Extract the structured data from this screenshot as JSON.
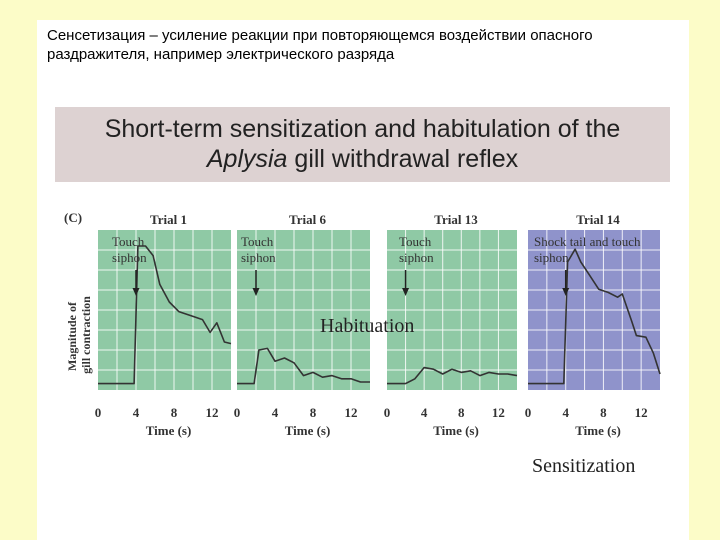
{
  "slide": {
    "caption": "Сенсетизация – усиление реакции при повторяющемся воздействии опасного раздражителя, например электрического разряда",
    "title_line1": "Short-term sensitization and habitulation of the",
    "title_line2_italic": "Aplysia",
    "title_line2_rest": " gill withdrawal reflex"
  },
  "colors": {
    "habituation_panel": "#8fc9a5",
    "sensitization_panel": "#8f93cb",
    "grid": "#ffffff",
    "trace": "#333333",
    "background": "#fcfcc8"
  },
  "figure": {
    "panel_label": "(C)",
    "y_label": [
      "Magnitude of",
      "gill contraction"
    ],
    "annotation_habituation": "Habituation",
    "annotation_sensitization": "Sensitization"
  },
  "chart_data": {
    "type": "line",
    "ylabel": "Magnitude of gill contraction",
    "xlabel": "Time (s)",
    "xlim": [
      0,
      14
    ],
    "ylim": [
      0,
      1
    ],
    "grid": true,
    "panels": [
      {
        "title": "Trial 1",
        "stimulus": "Touch siphon",
        "stimulus_time": 4,
        "xticks": [
          0,
          4,
          8,
          12
        ],
        "series": [
          {
            "x": [
              0,
              3.8,
              4.2,
              5,
              5.8,
              6.5,
              7.5,
              8.5,
              10,
              11,
              11.8,
              12.5,
              13.3,
              14
            ],
            "y": [
              0.04,
              0.04,
              0.9,
              0.9,
              0.84,
              0.66,
              0.55,
              0.49,
              0.46,
              0.44,
              0.36,
              0.42,
              0.3,
              0.29
            ]
          }
        ]
      },
      {
        "title": "Trial 6",
        "stimulus": "Touch siphon",
        "stimulus_time": 2,
        "xticks": [
          0,
          4,
          8,
          12
        ],
        "series": [
          {
            "x": [
              0,
              1.8,
              2.3,
              3.2,
              4,
              5,
              6,
              7,
              8,
              9,
              10,
              11,
              12,
              13,
              14
            ],
            "y": [
              0.04,
              0.04,
              0.25,
              0.26,
              0.18,
              0.2,
              0.17,
              0.09,
              0.11,
              0.08,
              0.09,
              0.07,
              0.07,
              0.05,
              0.05
            ]
          }
        ]
      },
      {
        "title": "Trial 13",
        "stimulus": "Touch siphon",
        "stimulus_time": 2,
        "xticks": [
          0,
          4,
          8,
          12
        ],
        "series": [
          {
            "x": [
              0,
              2,
              3,
              4,
              5,
              6,
              7,
              8,
              9,
              10,
              11,
              12,
              13,
              14
            ],
            "y": [
              0.04,
              0.04,
              0.07,
              0.14,
              0.13,
              0.1,
              0.13,
              0.11,
              0.12,
              0.09,
              0.11,
              0.1,
              0.1,
              0.09
            ]
          }
        ]
      },
      {
        "title": "Trial 14",
        "stimulus": "Shock tail and touch siphon",
        "stimulus_time": 4,
        "xticks": [
          0,
          4,
          8,
          12
        ],
        "series": [
          {
            "x": [
              0,
              3.8,
              4.2,
              5,
              5.6,
              6.5,
              7.5,
              8.5,
              9.5,
              10,
              11,
              11.5,
              12.5,
              13.3,
              14
            ],
            "y": [
              0.04,
              0.04,
              0.8,
              0.88,
              0.8,
              0.72,
              0.63,
              0.61,
              0.58,
              0.6,
              0.43,
              0.34,
              0.33,
              0.23,
              0.1
            ]
          }
        ]
      }
    ]
  }
}
